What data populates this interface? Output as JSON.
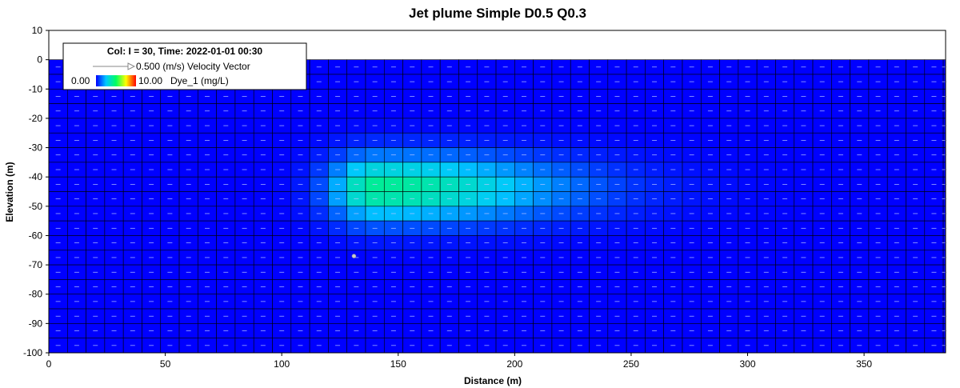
{
  "chart_data": {
    "type": "heatmap",
    "title": "Jet plume Simple D0.5 Q0.3",
    "xlabel": "Distance (m)",
    "ylabel": "Elevation (m)",
    "xlim": [
      0,
      385
    ],
    "ylim": [
      -100,
      10
    ],
    "x_ticks": [
      0,
      50,
      100,
      150,
      200,
      250,
      300,
      350
    ],
    "y_ticks": [
      10,
      0,
      -10,
      -20,
      -30,
      -40,
      -50,
      -60,
      -70,
      -80,
      -90,
      -100
    ],
    "grid_dx_m": 8,
    "grid_dz_m": 5,
    "water_surface_elevation": 0,
    "bottom_elevation": -100,
    "color_scale": {
      "min": 0.0,
      "max": 10.0,
      "min_label": "0.00",
      "max_label": "10.00",
      "label": "Dye_1 (mg/L)",
      "colors": [
        "#0000ff",
        "#00c8ff",
        "#00ff60",
        "#ffff00",
        "#ff0000"
      ]
    },
    "velocity_vector": {
      "magnitude_label": "0.500 (m/s) Velocity Vector"
    },
    "legend": {
      "placement": "top-left",
      "header": "Col: I = 30, Time: 2022-01-01 00:30"
    },
    "source": {
      "x": 131,
      "z": -67
    },
    "plume": {
      "description_values": "Dye_1 concentration field (mg/L)",
      "x_center": 140,
      "z_center": -44,
      "peak": 4.2,
      "x_spread_upstream": 14,
      "x_spread_downstream": 58,
      "z_spread": 8
    }
  }
}
